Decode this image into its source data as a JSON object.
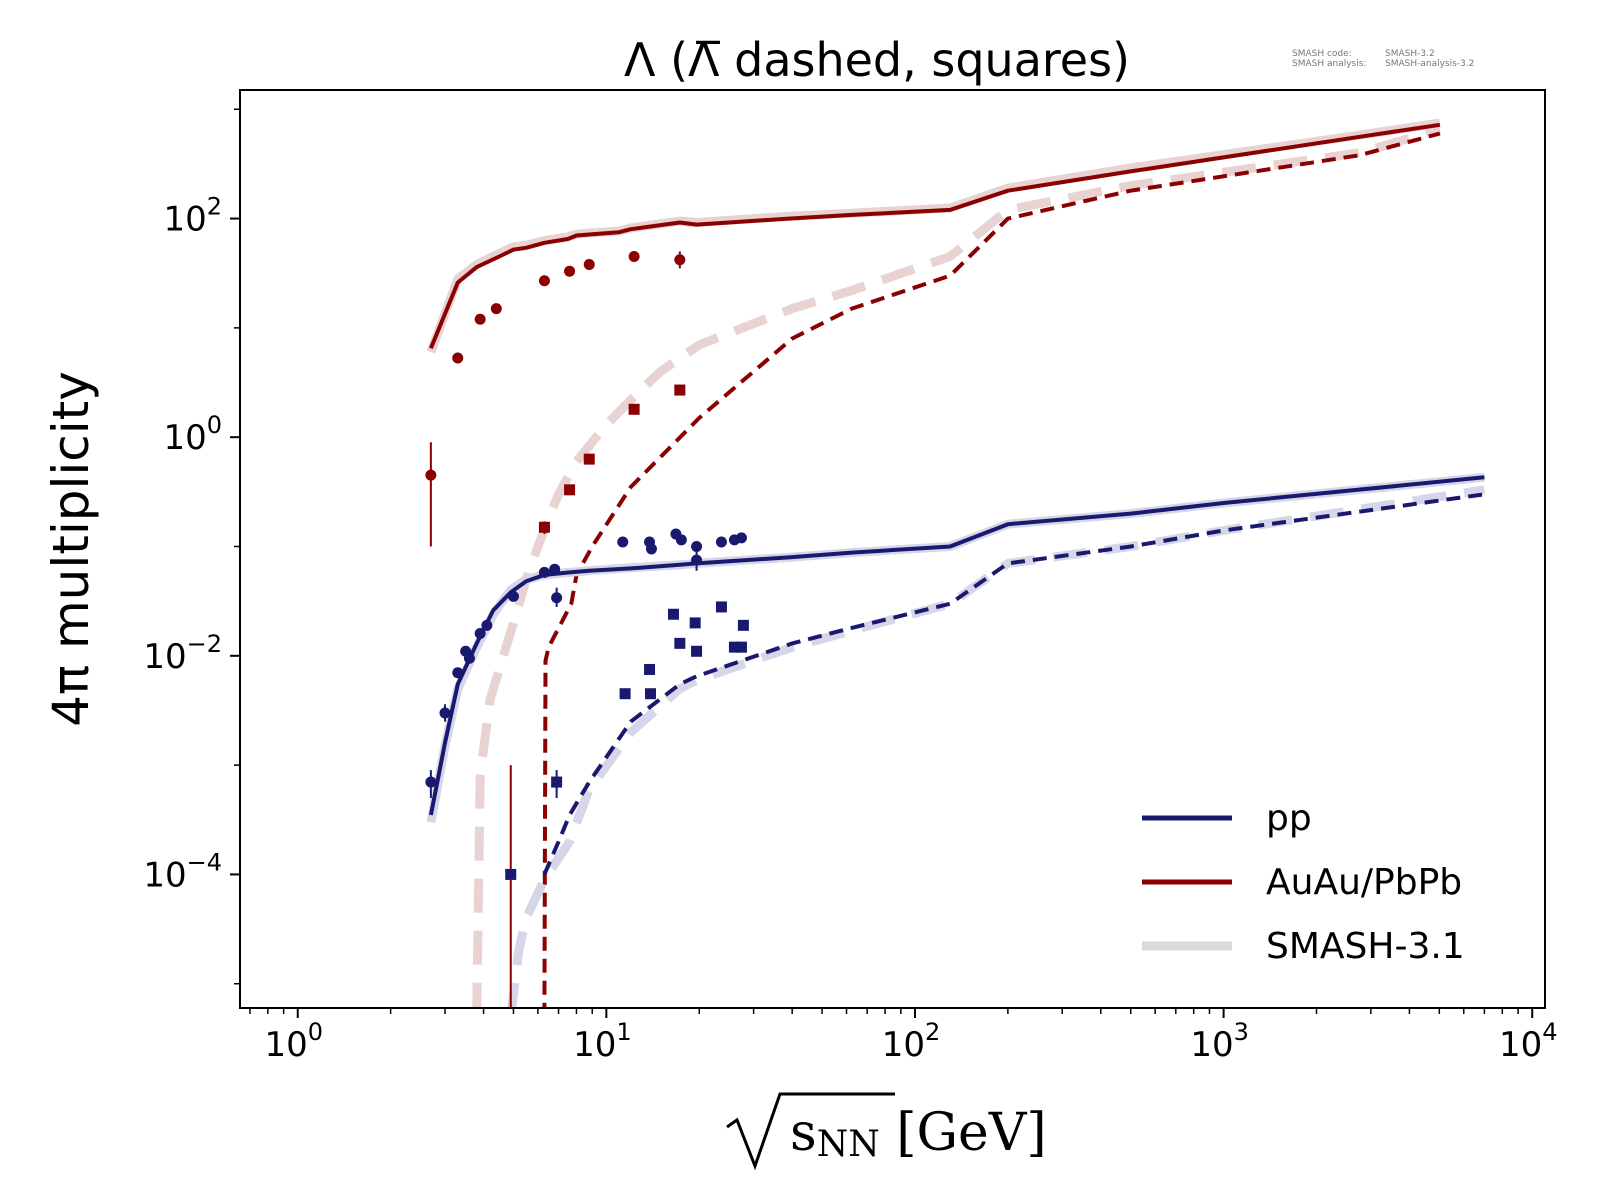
{
  "chart_data": {
    "type": "line",
    "title": "Λ (Λ̅ dashed, squares)",
    "xlabel": {
      "radical": "√",
      "base": "s",
      "sub": "NN",
      "unit": " [GeV]"
    },
    "ylabel": "4π multiplicity",
    "xscale": "log",
    "yscale": "log",
    "xlim": [
      0.65,
      11000
    ],
    "ylim": [
      6e-06,
      1500
    ],
    "x_ticks": [
      {
        "value": 1,
        "base": "10",
        "exp": "0"
      },
      {
        "value": 10,
        "base": "10",
        "exp": "1"
      },
      {
        "value": 100,
        "base": "10",
        "exp": "2"
      },
      {
        "value": 1000,
        "base": "10",
        "exp": "3"
      },
      {
        "value": 10000,
        "base": "10",
        "exp": "4"
      }
    ],
    "y_ticks": [
      {
        "value": 0.0001,
        "base": "10",
        "exp": "−4"
      },
      {
        "value": 0.01,
        "base": "10",
        "exp": "−2"
      },
      {
        "value": 1,
        "base": "10",
        "exp": "0"
      },
      {
        "value": 100,
        "base": "10",
        "exp": "2"
      }
    ],
    "grid": false,
    "legend": {
      "placement": "bottom-right",
      "entries": [
        {
          "label": "pp",
          "color": "#191970"
        },
        {
          "label": "AuAu/PbPb",
          "color": "#8b0000"
        },
        {
          "label": "SMASH-3.1",
          "color": "#d9d9d9"
        }
      ]
    },
    "info_text": [
      {
        "label": "SMASH code:",
        "value": "SMASH-3.2"
      },
      {
        "label": "SMASH analysis:",
        "value": "SMASH-analysis-3.2"
      }
    ],
    "series": [
      {
        "id": "smash31-auau-lambda",
        "color": "#e8d2d2",
        "dash": "solid",
        "x": [
          2.7,
          3.3,
          3.8,
          4.5,
          5.0,
          5.5,
          6.3,
          7.5,
          8.0,
          9.0,
          11.0,
          12.0,
          17.3,
          19.6,
          39.0,
          62.4,
          130,
          200,
          500,
          2760,
          5020
        ],
        "y": [
          6,
          28,
          38,
          48,
          55,
          57,
          63,
          68,
          72,
          74,
          77,
          82,
          95,
          92,
          105,
          112,
          125,
          190,
          290,
          580,
          750
        ]
      },
      {
        "id": "smash31-auau-antilambda",
        "color": "#e8d2d2",
        "dash": "long",
        "x": [
          3.8,
          3.9,
          4.2,
          5.0,
          5.5,
          6.0,
          6.5,
          7.0,
          8.0,
          9.0,
          10.0,
          12.0,
          15.0,
          20.0,
          40.0,
          62.4,
          130,
          200,
          500,
          2760,
          5020
        ],
        "y": [
          5e-06,
          0.0008,
          0.004,
          0.02,
          0.05,
          0.1,
          0.18,
          0.3,
          0.6,
          0.9,
          1.3,
          2.2,
          4,
          7,
          15,
          22,
          45,
          120,
          200,
          400,
          650
        ]
      },
      {
        "id": "smash32-auau-lambda",
        "color": "#8b0000",
        "dash": "solid",
        "x": [
          2.7,
          3.3,
          3.8,
          4.5,
          5.0,
          5.5,
          6.3,
          7.5,
          8.0,
          9.0,
          11.0,
          12.0,
          17.3,
          19.6,
          39.0,
          62.4,
          130,
          200,
          500,
          2760,
          5020
        ],
        "y": [
          6.5,
          26,
          36,
          45,
          52,
          54,
          60,
          65,
          70,
          72,
          75,
          80,
          92,
          88,
          100,
          108,
          120,
          180,
          270,
          560,
          720
        ]
      },
      {
        "id": "smash32-auau-antilambda",
        "color": "#8b0000",
        "dash": "short",
        "x": [
          6.3,
          6.35,
          6.5,
          7.7,
          8.0,
          9.0,
          12.0,
          20.0,
          40.0,
          62.4,
          130,
          200,
          500,
          2760,
          5020
        ],
        "y": [
          5e-06,
          0.009,
          0.012,
          0.03,
          0.055,
          0.1,
          0.35,
          1.5,
          8,
          15,
          30,
          100,
          180,
          380,
          600
        ]
      },
      {
        "id": "smash31-pp-lambda",
        "color": "#d6d6e8",
        "dash": "solid",
        "x": [
          2.7,
          3.0,
          3.3,
          3.8,
          4.3,
          4.9,
          5.5,
          6.3,
          7.6,
          8.8,
          12.0,
          17.3,
          19.6,
          40,
          62.4,
          130,
          200,
          500,
          1000,
          7000
        ],
        "y": [
          0.0003,
          0.0015,
          0.005,
          0.012,
          0.024,
          0.04,
          0.05,
          0.055,
          0.058,
          0.06,
          0.064,
          0.068,
          0.07,
          0.08,
          0.088,
          0.1,
          0.16,
          0.2,
          0.25,
          0.43
        ]
      },
      {
        "id": "smash31-pp-antilambda",
        "color": "#d6d6e8",
        "dash": "long",
        "x": [
          4.9,
          5.2,
          5.5,
          6.3,
          7.6,
          8.8,
          12.0,
          17.3,
          19.6,
          40,
          62.4,
          130,
          200,
          500,
          1000,
          7000
        ],
        "y": [
          5e-06,
          2e-05,
          4e-05,
          9e-05,
          0.0002,
          0.0006,
          0.002,
          0.005,
          0.006,
          0.012,
          0.017,
          0.03,
          0.07,
          0.1,
          0.14,
          0.33
        ]
      },
      {
        "id": "smash32-pp-lambda",
        "color": "#191970",
        "dash": "solid",
        "x": [
          2.7,
          3.0,
          3.3,
          3.8,
          4.3,
          4.9,
          5.5,
          6.3,
          7.6,
          8.8,
          12.0,
          17.3,
          19.6,
          40,
          62.4,
          130,
          200,
          500,
          1000,
          7000
        ],
        "y": [
          0.00035,
          0.0016,
          0.0055,
          0.013,
          0.026,
          0.038,
          0.048,
          0.055,
          0.058,
          0.06,
          0.063,
          0.068,
          0.07,
          0.08,
          0.088,
          0.1,
          0.16,
          0.2,
          0.25,
          0.43
        ]
      },
      {
        "id": "smash32-pp-antilambda",
        "color": "#191970",
        "dash": "short",
        "x": [
          6.3,
          7.0,
          7.6,
          8.8,
          12.0,
          17.3,
          19.6,
          40,
          62.4,
          130,
          200,
          500,
          1000,
          7000
        ],
        "y": [
          0.0001,
          0.0002,
          0.00035,
          0.0007,
          0.0025,
          0.0055,
          0.0065,
          0.013,
          0.018,
          0.03,
          0.07,
          0.1,
          0.14,
          0.3
        ]
      }
    ],
    "points": [
      {
        "id": "exp-auau-lambda",
        "color": "#8b0000",
        "marker": "circle",
        "data": [
          {
            "x": 2.7,
            "y": 0.45,
            "lo": 0.1,
            "hi": 0.9
          },
          {
            "x": 3.3,
            "y": 5.3
          },
          {
            "x": 3.9,
            "y": 12
          },
          {
            "x": 4.4,
            "y": 15
          },
          {
            "x": 6.3,
            "y": 27
          },
          {
            "x": 7.6,
            "y": 33
          },
          {
            "x": 8.8,
            "y": 38
          },
          {
            "x": 12.3,
            "y": 45
          },
          {
            "x": 17.3,
            "y": 42,
            "lo": 35,
            "hi": 50
          }
        ]
      },
      {
        "id": "exp-auau-antilambda",
        "color": "#8b0000",
        "marker": "square",
        "data": [
          {
            "x": 4.9,
            "y": 5e-06,
            "lo": 5e-06,
            "hi": 0.001
          },
          {
            "x": 6.3,
            "y": 0.15,
            "lo": 0.13,
            "hi": 0.17
          },
          {
            "x": 7.6,
            "y": 0.33
          },
          {
            "x": 8.8,
            "y": 0.63
          },
          {
            "x": 12.3,
            "y": 1.8
          },
          {
            "x": 17.3,
            "y": 2.7
          }
        ]
      },
      {
        "id": "exp-pp-lambda",
        "color": "#191970",
        "marker": "circle",
        "data": [
          {
            "x": 2.7,
            "y": 0.0007,
            "lo": 0.0005,
            "hi": 0.0009
          },
          {
            "x": 3.0,
            "y": 0.003,
            "lo": 0.0025,
            "hi": 0.0036
          },
          {
            "x": 3.3,
            "y": 0.007
          },
          {
            "x": 3.5,
            "y": 0.011
          },
          {
            "x": 3.6,
            "y": 0.0095
          },
          {
            "x": 3.9,
            "y": 0.016
          },
          {
            "x": 4.1,
            "y": 0.019
          },
          {
            "x": 5.0,
            "y": 0.035
          },
          {
            "x": 6.3,
            "y": 0.058
          },
          {
            "x": 6.8,
            "y": 0.062
          },
          {
            "x": 6.9,
            "y": 0.034,
            "lo": 0.028,
            "hi": 0.042
          },
          {
            "x": 11.3,
            "y": 0.11
          },
          {
            "x": 13.8,
            "y": 0.11
          },
          {
            "x": 14.0,
            "y": 0.095
          },
          {
            "x": 16.8,
            "y": 0.13
          },
          {
            "x": 17.5,
            "y": 0.115
          },
          {
            "x": 19.6,
            "y": 0.1
          },
          {
            "x": 19.6,
            "y": 0.075,
            "lo": 0.06,
            "hi": 0.09
          },
          {
            "x": 23.6,
            "y": 0.11
          },
          {
            "x": 26.0,
            "y": 0.115
          },
          {
            "x": 27.4,
            "y": 0.12
          }
        ]
      },
      {
        "id": "exp-pp-antilambda",
        "color": "#191970",
        "marker": "square",
        "data": [
          {
            "x": 4.9,
            "y": 0.0001
          },
          {
            "x": 6.9,
            "y": 0.0007,
            "lo": 0.0005,
            "hi": 0.0009
          },
          {
            "x": 11.5,
            "y": 0.0045
          },
          {
            "x": 13.8,
            "y": 0.0075
          },
          {
            "x": 13.9,
            "y": 0.0045
          },
          {
            "x": 16.5,
            "y": 0.024
          },
          {
            "x": 17.3,
            "y": 0.013
          },
          {
            "x": 19.4,
            "y": 0.02
          },
          {
            "x": 19.6,
            "y": 0.011
          },
          {
            "x": 23.6,
            "y": 0.028
          },
          {
            "x": 26.0,
            "y": 0.012
          },
          {
            "x": 27.4,
            "y": 0.012
          },
          {
            "x": 27.8,
            "y": 0.019
          }
        ]
      }
    ]
  }
}
